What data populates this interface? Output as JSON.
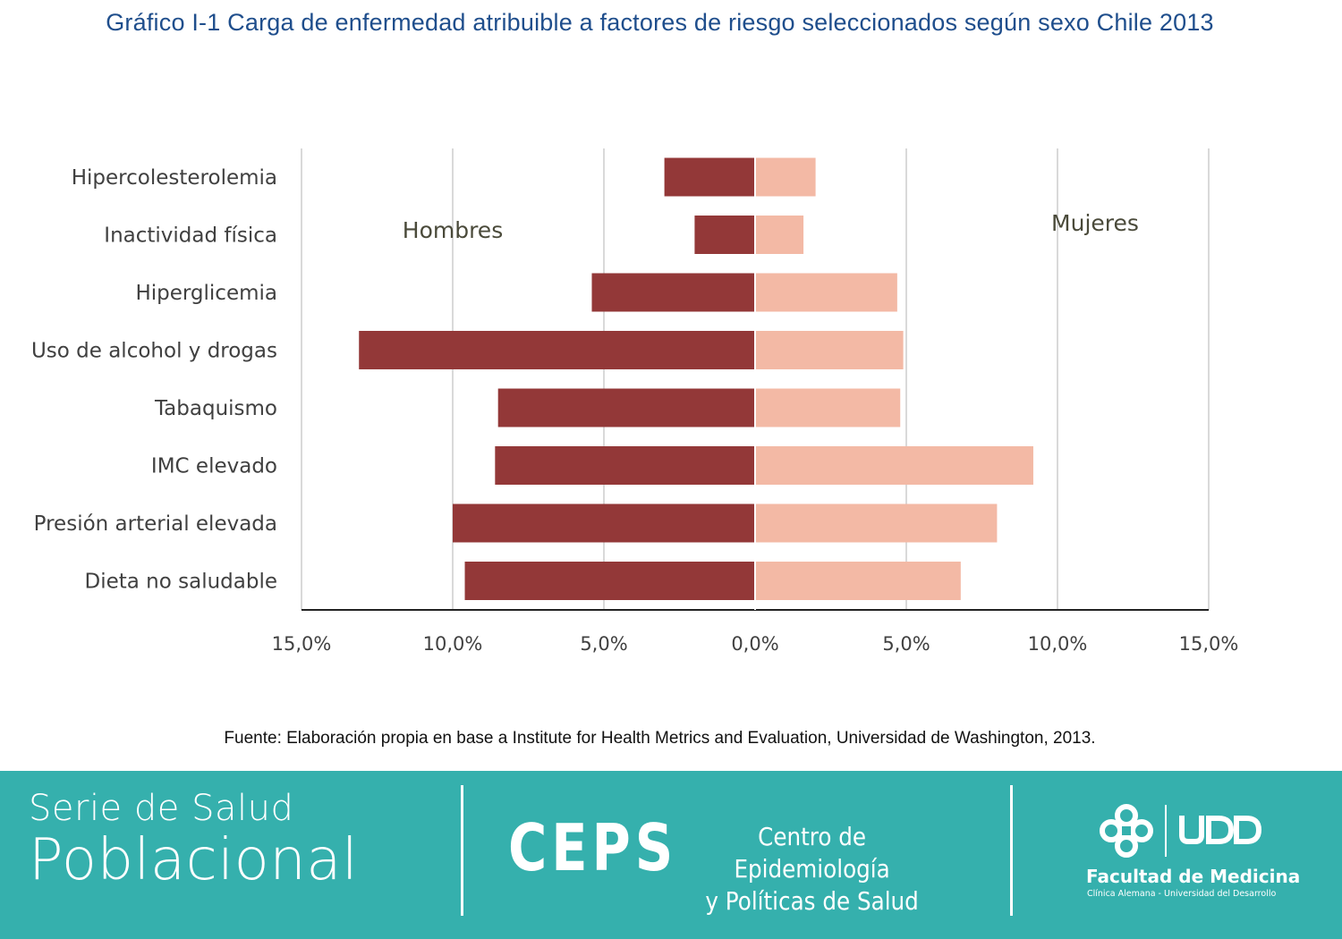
{
  "title": "Gráfico I-1 Carga de enfermedad atribuible a factores de riesgo seleccionados según sexo Chile 2013",
  "source": "Fuente: Elaboración propia en base a Institute for Health Metrics and Evaluation, Universidad de Washington, 2013.",
  "chart_data": {
    "type": "bar",
    "orientation": "horizontal",
    "layout": "population-pyramid",
    "categories": [
      "Hipercolesterolemia",
      "Inactividad física",
      "Hiperglicemia",
      "Uso de alcohol y drogas",
      "Tabaquismo",
      "IMC elevado",
      "Presión arterial elevada",
      "Dieta no saludable"
    ],
    "series": [
      {
        "name": "Hombres",
        "values": [
          3.0,
          2.0,
          5.4,
          13.1,
          8.5,
          8.6,
          10.0,
          9.6
        ],
        "color": "#933838",
        "side": "left"
      },
      {
        "name": "Mujeres",
        "values": [
          2.0,
          1.6,
          4.7,
          4.9,
          4.8,
          9.2,
          8.0,
          6.8
        ],
        "color": "#f3b9a5",
        "side": "right"
      }
    ],
    "xlim": [
      -15,
      15
    ],
    "xticks": [
      -15,
      -10,
      -5,
      0,
      5,
      10,
      15
    ],
    "xtick_labels": [
      "15,0%",
      "10,0%",
      "5,0%",
      "0,0%",
      "5,0%",
      "10,0%",
      "15,0%"
    ],
    "grid": true,
    "legend": "inline labels"
  },
  "footer": {
    "serie_line1": "Serie de Salud",
    "serie_line2": "Poblacional",
    "ceps": "CEPS",
    "ceps_name_line1": "Centro de Epidemiología",
    "ceps_name_line2": "y Políticas de Salud",
    "facultad": "Facultad de Medicina",
    "facultad_sub": "Clínica Alemana - Universidad del Desarrollo",
    "background_color": "#35b0ad"
  }
}
